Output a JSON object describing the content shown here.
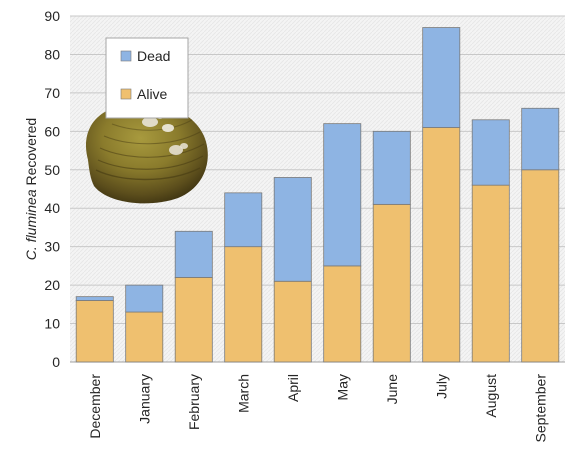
{
  "chart_data": {
    "type": "bar",
    "stacked": true,
    "categories": [
      "December",
      "January",
      "February",
      "March",
      "April",
      "May",
      "June",
      "July",
      "August",
      "September"
    ],
    "series": [
      {
        "name": "Alive",
        "values": [
          16,
          13,
          22,
          30,
          21,
          25,
          41,
          61,
          46,
          50
        ],
        "color": "#efc06f"
      },
      {
        "name": "Dead",
        "values": [
          1,
          7,
          12,
          14,
          27,
          37,
          19,
          26,
          17,
          16
        ],
        "color": "#8eb4e3"
      }
    ],
    "ylabel_italic": "C. fluminea",
    "ylabel_rest": " Recovered",
    "ylim": [
      0,
      90
    ],
    "yticks": [
      0,
      10,
      20,
      30,
      40,
      50,
      60,
      70,
      80,
      90
    ],
    "grid": true,
    "legend_position": "top-left",
    "inset_image": "clam-shell-photo",
    "colors": {
      "grid": "#c8c8c8",
      "bar_stroke": "#7a7a7a",
      "plot_bg": "#f2f2f2"
    }
  }
}
